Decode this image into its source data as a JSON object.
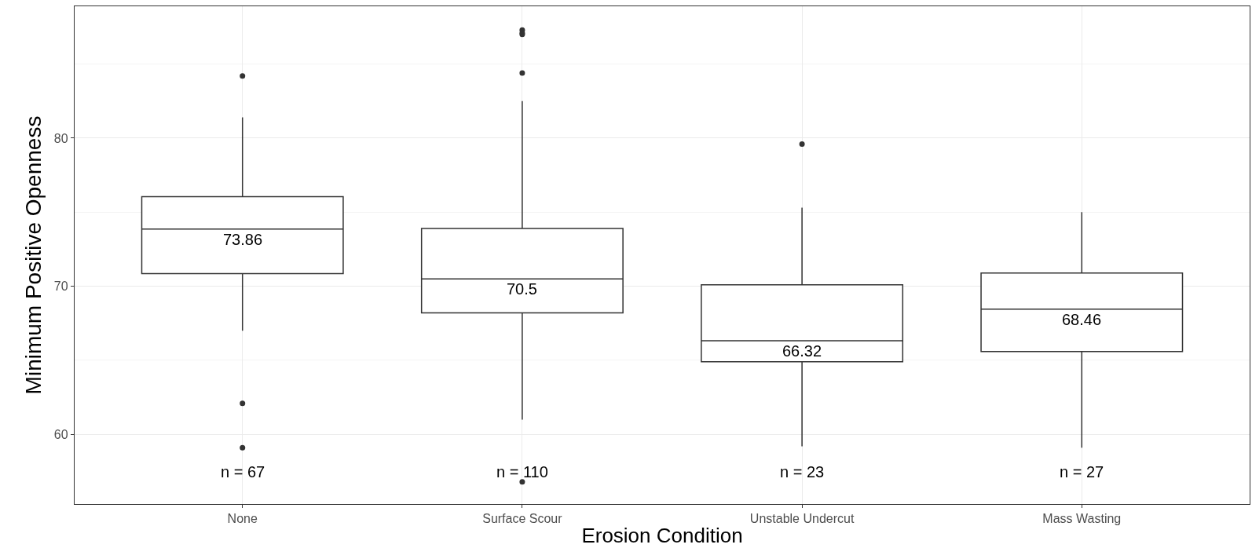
{
  "chart_data": {
    "type": "box",
    "xlabel": "Erosion Condition",
    "ylabel": "Minimum Positive Openness",
    "categories": [
      "None",
      "Surface Scour",
      "Unstable Undercut",
      "Mass Wasting"
    ],
    "boxes": [
      {
        "low": 67.0,
        "q1": 70.85,
        "median": 73.86,
        "q3": 76.05,
        "high": 81.4,
        "outliers": [
          84.2,
          62.1,
          59.1
        ]
      },
      {
        "low": 61.0,
        "q1": 68.2,
        "median": 70.5,
        "q3": 73.9,
        "high": 82.5,
        "outliers": [
          87.3,
          87.1,
          87.0,
          84.4,
          56.8
        ]
      },
      {
        "low": 59.2,
        "q1": 64.9,
        "median": 66.32,
        "q3": 70.1,
        "high": 75.3,
        "outliers": [
          79.6
        ]
      },
      {
        "low": 59.1,
        "q1": 65.6,
        "median": 68.46,
        "q3": 70.9,
        "high": 75.0
      }
    ],
    "color": "#333333",
    "ylim": [
      55.3,
      88.9
    ],
    "yticks": [
      60,
      70,
      80
    ],
    "grid": true,
    "annotations": [
      {
        "text": "73.86",
        "x": "None",
        "y": 73.86
      },
      {
        "text": "70.5",
        "x": "Surface Scour",
        "y": 70.5
      },
      {
        "text": "66.32",
        "x": "Unstable Undercut",
        "y": 66.32
      },
      {
        "text": "68.46",
        "x": "Mass Wasting",
        "y": 68.46
      },
      "n = 67",
      "n = 110",
      "n = 23",
      "n = 27"
    ]
  }
}
